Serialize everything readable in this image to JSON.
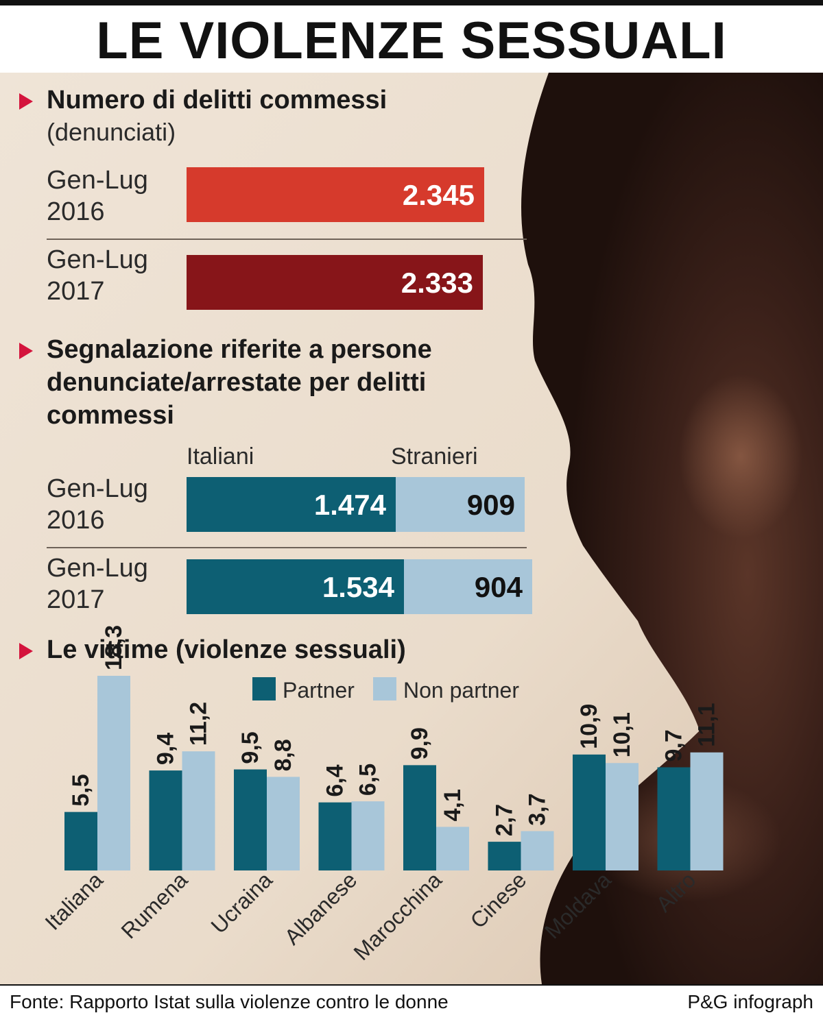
{
  "title": "LE VIOLENZE SESSUALI",
  "sections": {
    "s1": {
      "title": "Numero di delitti commessi",
      "subtitle": "(denunciati)"
    },
    "s2": {
      "title_lines": [
        "Segnalazione riferite a persone",
        "denunciate/arrestate per delitti",
        "commessi"
      ]
    },
    "s3": {
      "title": "Le vittime (violenze sessuali)"
    }
  },
  "colors": {
    "red_2016": "#d63a2c",
    "red_2017": "#871519",
    "partner": "#0d5f73",
    "non_partner": "#a8c6d9",
    "marker": "#d4143c",
    "panel_bg": "#ece0d2"
  },
  "chart_data": [
    {
      "type": "bar",
      "orientation": "horizontal",
      "title": "Numero di delitti commessi",
      "subtitle": "(denunciati)",
      "categories": [
        [
          "Gen-Lug",
          "2016"
        ],
        [
          "Gen-Lug",
          "2017"
        ]
      ],
      "values": [
        2345,
        2333
      ],
      "value_labels": [
        "2.345",
        "2.333"
      ],
      "xlim": [
        0,
        2345
      ]
    },
    {
      "type": "bar",
      "orientation": "horizontal",
      "stacked": true,
      "title": "Segnalazione riferite a persone denunciate/arrestate per delitti commessi",
      "categories": [
        [
          "Gen-Lug",
          "2016"
        ],
        [
          "Gen-Lug",
          "2017"
        ]
      ],
      "series": [
        {
          "name": "Italiani",
          "values": [
            1474,
            1534
          ],
          "value_labels": [
            "1.474",
            "1.534"
          ]
        },
        {
          "name": "Stranieri",
          "values": [
            909,
            904
          ],
          "value_labels": [
            "909",
            "904"
          ]
        }
      ],
      "xlim": [
        0,
        2438
      ]
    },
    {
      "type": "bar",
      "title": "Le vittime (violenze sessuali)",
      "categories": [
        "Italiana",
        "Rumena",
        "Ucraina",
        "Albanese",
        "Marocchina",
        "Cinese",
        "Moldava",
        "Altro"
      ],
      "series": [
        {
          "name": "Partner",
          "values": [
            5.5,
            9.4,
            9.5,
            6.4,
            9.9,
            2.7,
            10.9,
            9.7
          ],
          "value_labels": [
            "5,5",
            "9,4",
            "9,5",
            "6,4",
            "9,9",
            "2,7",
            "10,9",
            "9,7"
          ]
        },
        {
          "name": "Non partner",
          "values": [
            18.3,
            11.2,
            8.8,
            6.5,
            4.1,
            3.7,
            10.1,
            11.1
          ],
          "value_labels": [
            "18,3",
            "11,2",
            "8,8",
            "6,5",
            "4,1",
            "3,7",
            "10,1",
            "11,1"
          ]
        }
      ],
      "legend": "top",
      "ylim": [
        0,
        18.3
      ],
      "grid": false
    }
  ],
  "footer": {
    "source": "Fonte: Rapporto Istat sulla violenze contro le donne",
    "credit": "P&G infograph"
  }
}
